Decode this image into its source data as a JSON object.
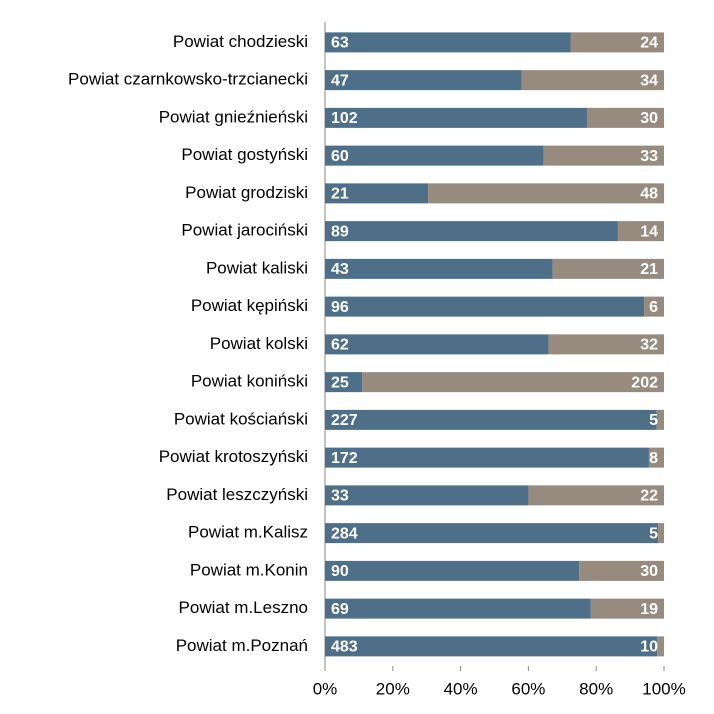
{
  "chart_data": {
    "type": "bar",
    "orientation": "horizontal",
    "stacking": "percent",
    "categories": [
      "Powiat chodzieski",
      "Powiat czarnkowsko-trzcianecki",
      "Powiat gnieźnieński",
      "Powiat gostyński",
      "Powiat grodziski",
      "Powiat jarociński",
      "Powiat kaliski",
      "Powiat kępiński",
      "Powiat kolski",
      "Powiat koniński",
      "Powiat kościański",
      "Powiat krotoszyński",
      "Powiat leszczyński",
      "Powiat m.Kalisz",
      "Powiat m.Konin",
      "Powiat m.Leszno",
      "Powiat m.Poznań"
    ],
    "series": [
      {
        "color": "#4e6f87",
        "values": [
          63,
          47,
          102,
          60,
          21,
          89,
          43,
          96,
          62,
          25,
          227,
          172,
          33,
          284,
          90,
          69,
          483
        ]
      },
      {
        "color": "#978a7e",
        "values": [
          24,
          34,
          30,
          33,
          48,
          14,
          21,
          6,
          32,
          202,
          5,
          8,
          22,
          5,
          30,
          19,
          10
        ]
      }
    ],
    "xlim": [
      0,
      100
    ],
    "xticks": [
      {
        "value": 0,
        "label": "0%"
      },
      {
        "value": 20,
        "label": "20%"
      },
      {
        "value": 40,
        "label": "40%"
      },
      {
        "value": 60,
        "label": "60%"
      },
      {
        "value": 80,
        "label": "80%"
      },
      {
        "value": 100,
        "label": "100%"
      }
    ],
    "grid": false
  }
}
